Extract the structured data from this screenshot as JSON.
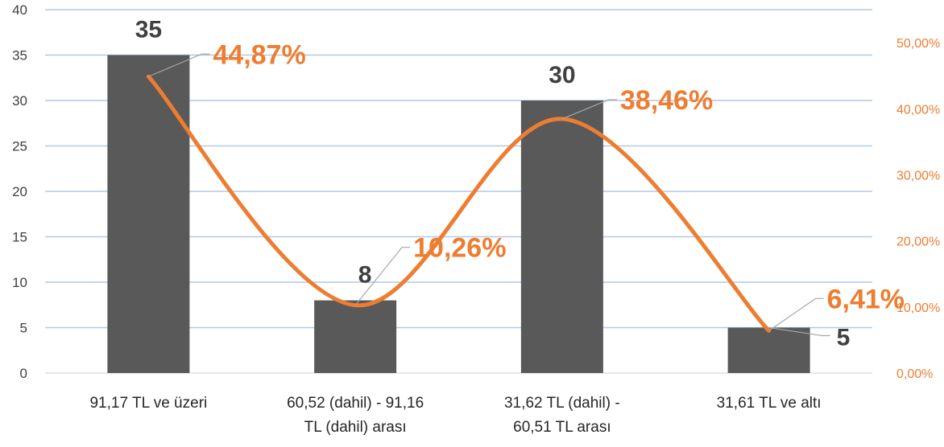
{
  "chart_data": {
    "type": "bar",
    "categories": [
      "91,17 TL ve üzeri",
      "60,52 (dahil) - 91,16 TL (dahil) arası",
      "31,62 TL (dahil) - 60,51 TL arası",
      "31,61 TL ve altı"
    ],
    "category_lines": [
      [
        "91,17 TL ve üzeri"
      ],
      [
        "60,52 (dahil) - 91,16",
        "TL (dahil) arası"
      ],
      [
        "31,62 TL (dahil) -",
        "60,51 TL arası"
      ],
      [
        "31,61 TL ve altı"
      ]
    ],
    "series": [
      {
        "type": "bar",
        "axis": "left",
        "values": [
          35,
          8,
          30,
          5
        ],
        "data_labels": [
          "35",
          "8",
          "30",
          "5"
        ],
        "color": "#595959"
      },
      {
        "type": "line",
        "smooth": true,
        "axis": "right",
        "values": [
          44.87,
          10.26,
          38.46,
          6.41
        ],
        "data_labels": [
          "44,87%",
          "10,26%",
          "38,46%",
          "6,41%"
        ],
        "color": "#ED7D31"
      }
    ],
    "y_left": {
      "min": 0,
      "max": 40,
      "step": 5,
      "ticks": [
        "0",
        "5",
        "10",
        "15",
        "20",
        "25",
        "30",
        "35",
        "40"
      ]
    },
    "y_right": {
      "min": 0,
      "max": 55,
      "ticks": [
        {
          "value": 0,
          "label": "0,00%"
        },
        {
          "value": 10,
          "label": "10,00%"
        },
        {
          "value": 20,
          "label": "20,00%"
        },
        {
          "value": 30,
          "label": "30,00%"
        },
        {
          "value": 40,
          "label": "40,00%"
        },
        {
          "value": 50,
          "label": "50,00%"
        }
      ]
    },
    "title": "",
    "xlabel": "",
    "ylabel": "",
    "grid": true,
    "legend": "none"
  }
}
